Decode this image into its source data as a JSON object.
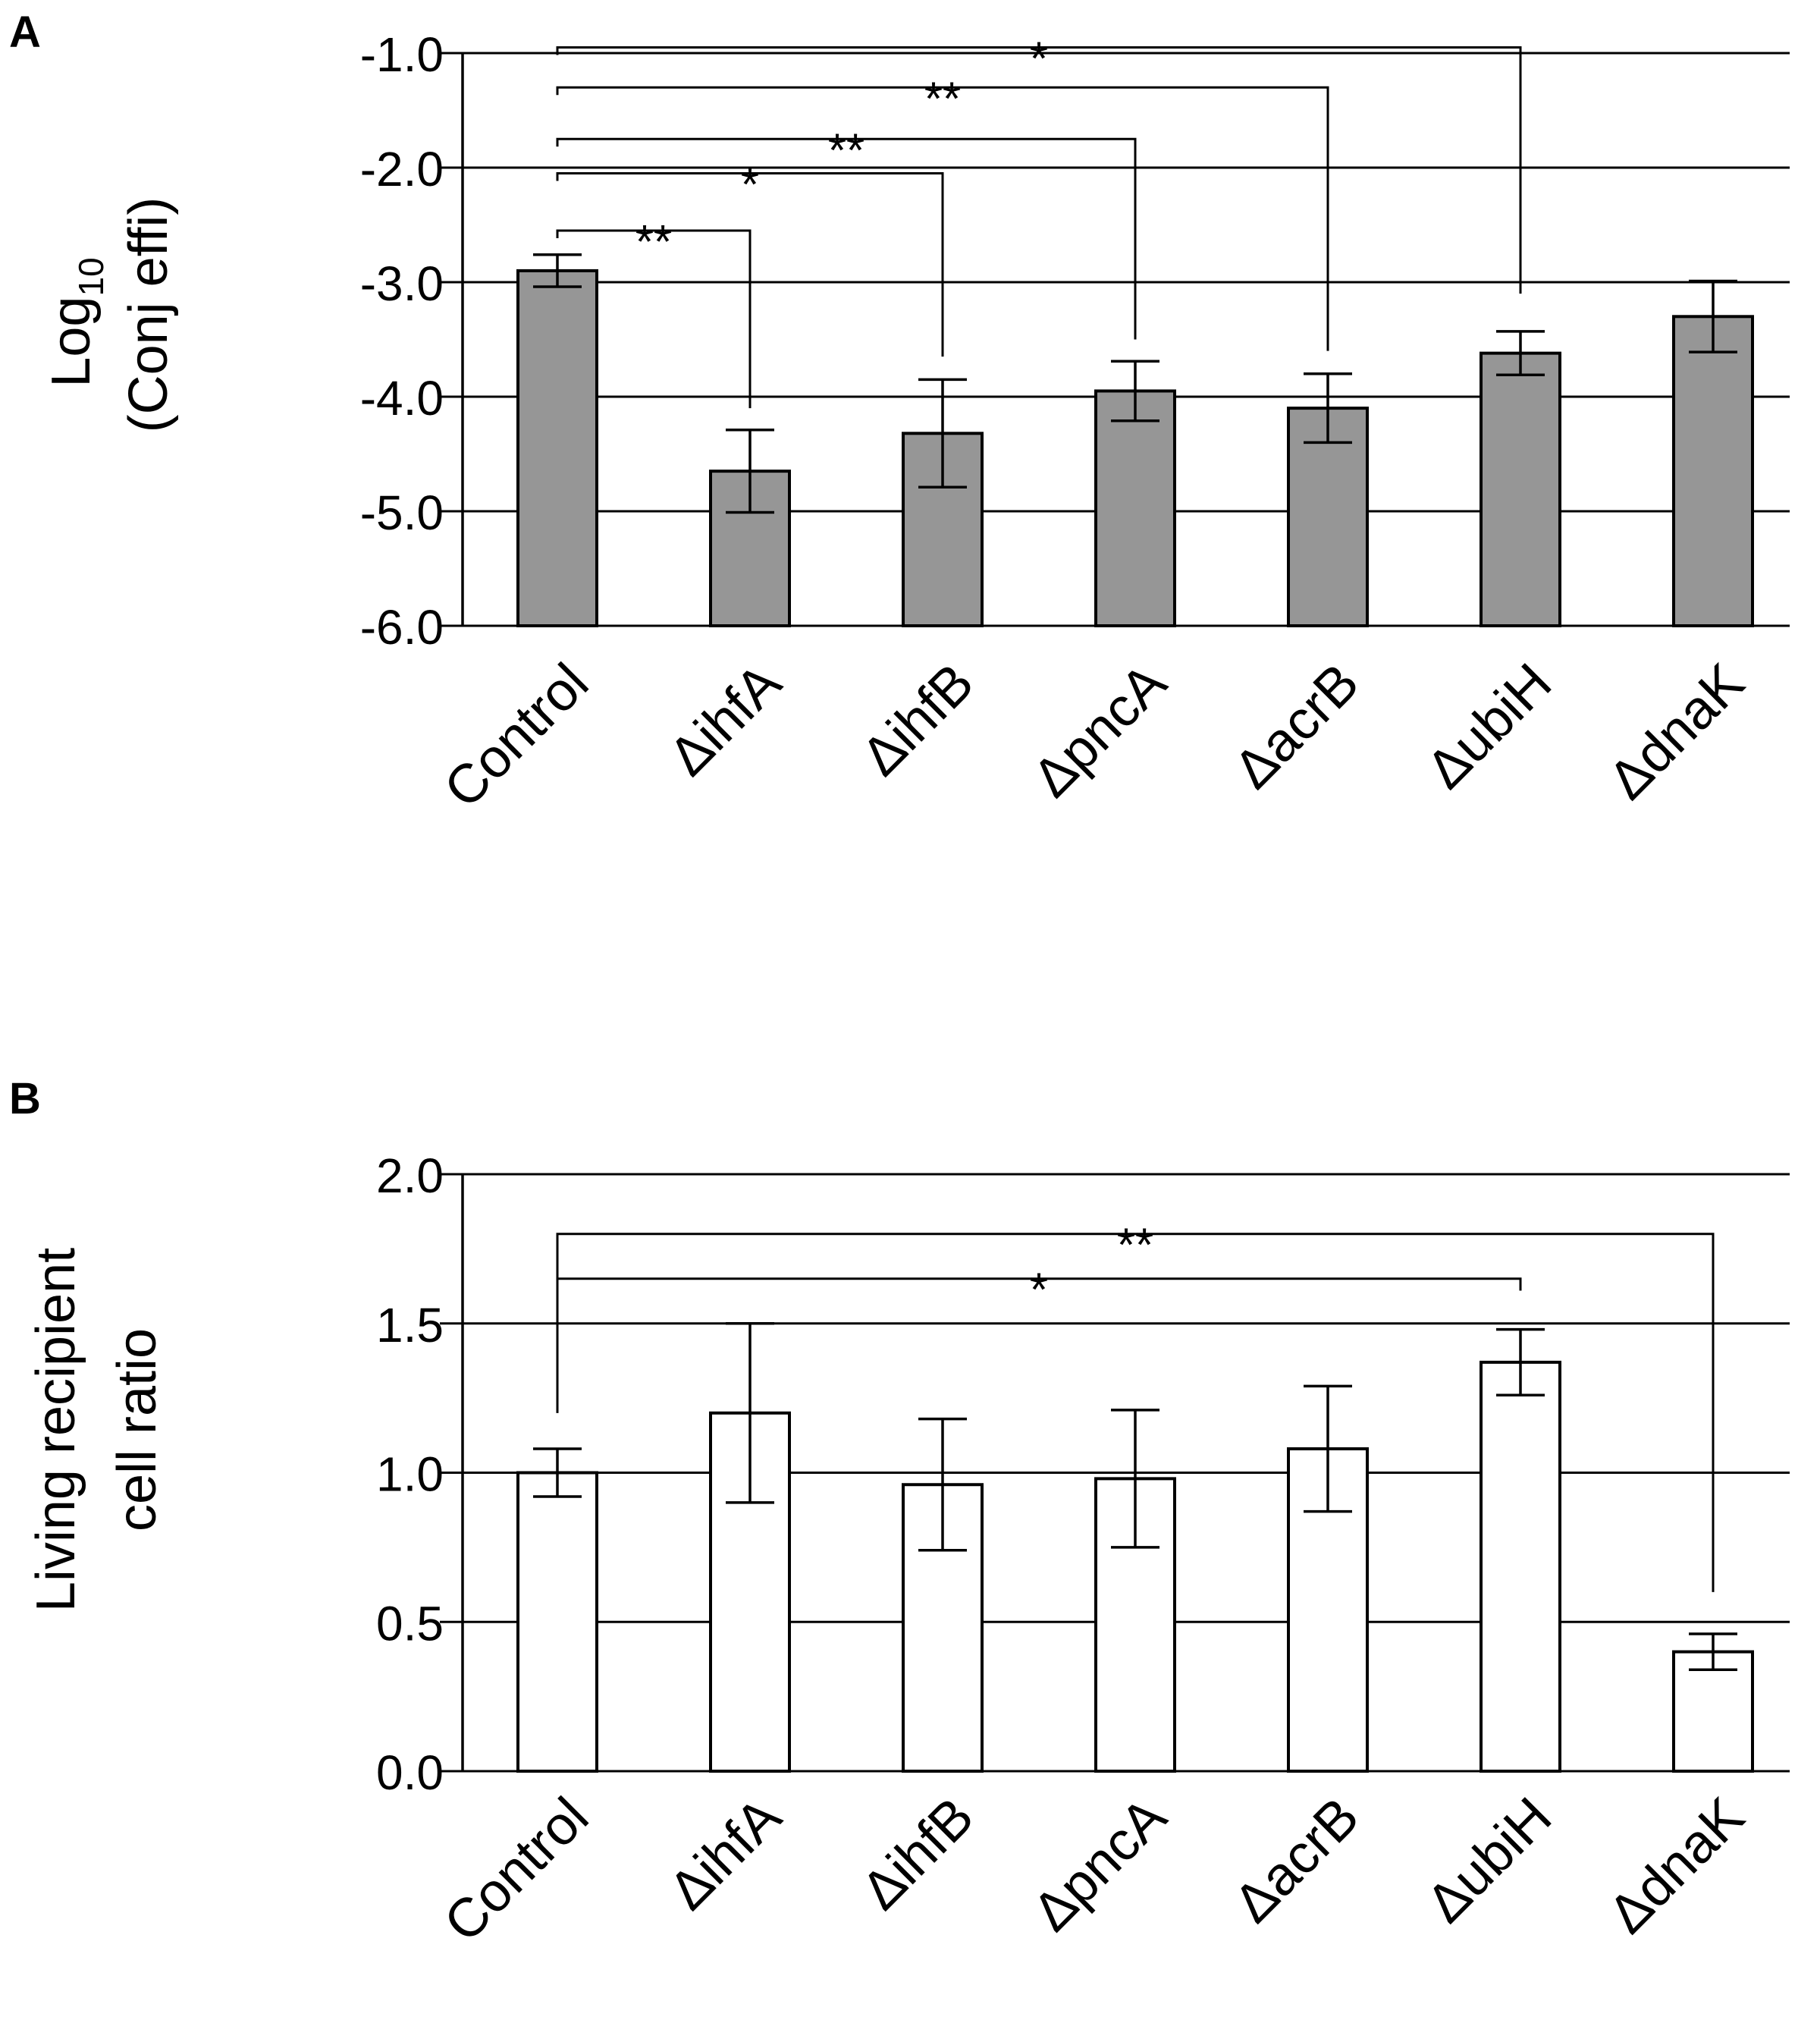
{
  "figure": {
    "panels": [
      "A",
      "B"
    ]
  },
  "chart_data": [
    {
      "panel": "A",
      "type": "bar",
      "categories": [
        "Control",
        "ΔihfA",
        "ΔihfB",
        "ΔpncA",
        "ΔacrB",
        "ΔubiH",
        "ΔdnaK"
      ],
      "values": [
        -2.9,
        -4.65,
        -4.32,
        -3.95,
        -4.1,
        -3.62,
        -3.3
      ],
      "errors": [
        0.14,
        0.36,
        0.47,
        0.26,
        0.3,
        0.19,
        0.31
      ],
      "ylabel_line1": "Log",
      "ylabel_sub": "10",
      "ylabel_line2": "(Conj effi)",
      "ylim": [
        -6.0,
        -1.0
      ],
      "yticks": [
        -1.0,
        -2.0,
        -3.0,
        -4.0,
        -5.0,
        -6.0
      ],
      "ytick_labels": [
        "-1.0",
        "-2.0",
        "-3.0",
        "-4.0",
        "-5.0",
        "-6.0"
      ],
      "grid": true,
      "bar_color": "#969696",
      "significance": [
        {
          "from": 0,
          "to": 1,
          "label": "**",
          "bracket_y": -2.55,
          "end_y": -4.1
        },
        {
          "from": 0,
          "to": 2,
          "label": "*",
          "bracket_y": -2.05,
          "end_y": -3.65
        },
        {
          "from": 0,
          "to": 3,
          "label": "**",
          "bracket_y": -1.75,
          "end_y": -3.5
        },
        {
          "from": 0,
          "to": 4,
          "label": "**",
          "bracket_y": -1.3,
          "end_y": -3.6
        },
        {
          "from": 0,
          "to": 5,
          "label": "*",
          "bracket_y": -0.95,
          "end_y": -3.1
        }
      ]
    },
    {
      "panel": "B",
      "type": "bar",
      "categories": [
        "Control",
        "ΔihfA",
        "ΔihfB",
        "ΔpncA",
        "ΔacrB",
        "ΔubiH",
        "ΔdnaK"
      ],
      "values": [
        1.0,
        1.2,
        0.96,
        0.98,
        1.08,
        1.37,
        0.4
      ],
      "errors": [
        0.08,
        0.3,
        0.22,
        0.23,
        0.21,
        0.11,
        0.06
      ],
      "ylabel_line1": "Living recipient",
      "ylabel_line2": "cell ratio",
      "ylim": [
        0.0,
        2.0
      ],
      "yticks": [
        2.0,
        1.5,
        1.0,
        0.5,
        0.0
      ],
      "ytick_labels": [
        "2.0",
        "1.5",
        "1.0",
        "0.5",
        "0.0"
      ],
      "grid": true,
      "bar_color": "#ffffff",
      "significance": [
        {
          "from": 0,
          "to": 5,
          "label": "*",
          "bracket_y": 1.65,
          "end_y": 1.61,
          "start_y": 1.2
        },
        {
          "from": 0,
          "to": 6,
          "label": "**",
          "bracket_y": 1.8,
          "end_y": 0.6,
          "start_y": 1.2
        }
      ]
    }
  ]
}
